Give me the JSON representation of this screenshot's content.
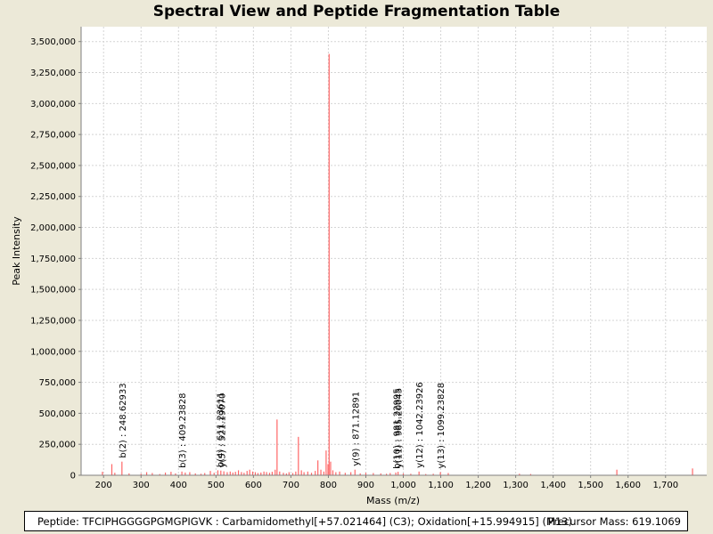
{
  "chart_data": {
    "type": "bar",
    "title": "Spectral View and Peptide Fragmentation Table",
    "xlabel": "Mass (m/z)",
    "ylabel": "Peak Intensity",
    "xlim": [
      140,
      1810
    ],
    "ylim": [
      0,
      3620000
    ],
    "x_ticks": [
      200,
      300,
      400,
      500,
      600,
      700,
      800,
      900,
      1000,
      1100,
      1200,
      1300,
      1400,
      1500,
      1600,
      1700
    ],
    "x_tick_labels": [
      "200",
      "300",
      "400",
      "500",
      "600",
      "700",
      "800",
      "900",
      "1,000",
      "1,100",
      "1,200",
      "1,300",
      "1,400",
      "1,500",
      "1,600",
      "1,700"
    ],
    "y_ticks": [
      0,
      250000,
      500000,
      750000,
      1000000,
      1250000,
      1500000,
      1750000,
      2000000,
      2250000,
      2500000,
      2750000,
      3000000,
      3250000,
      3500000
    ],
    "y_tick_labels": [
      "0",
      "250,000",
      "500,000",
      "750,000",
      "1,000,000",
      "1,250,000",
      "1,500,000",
      "1,750,000",
      "2,000,000",
      "2,250,000",
      "2,500,000",
      "2,750,000",
      "3,000,000",
      "3,250,000",
      "3,500,000"
    ],
    "grid": true,
    "peak_color": "#ff6666",
    "peaks": [
      [
        197,
        28000
      ],
      [
        222,
        90000
      ],
      [
        230,
        20000
      ],
      [
        249,
        110000
      ],
      [
        268,
        15000
      ],
      [
        300,
        12000
      ],
      [
        315,
        25000
      ],
      [
        330,
        18000
      ],
      [
        350,
        10000
      ],
      [
        365,
        22000
      ],
      [
        380,
        28000
      ],
      [
        392,
        15000
      ],
      [
        409,
        30000
      ],
      [
        418,
        22000
      ],
      [
        430,
        25000
      ],
      [
        445,
        15000
      ],
      [
        460,
        12000
      ],
      [
        470,
        18000
      ],
      [
        485,
        35000
      ],
      [
        495,
        20000
      ],
      [
        505,
        40000
      ],
      [
        513,
        38000
      ],
      [
        521,
        32000
      ],
      [
        530,
        25000
      ],
      [
        538,
        30000
      ],
      [
        545,
        22000
      ],
      [
        552,
        28000
      ],
      [
        560,
        40000
      ],
      [
        568,
        26000
      ],
      [
        575,
        20000
      ],
      [
        583,
        35000
      ],
      [
        590,
        45000
      ],
      [
        598,
        30000
      ],
      [
        605,
        25000
      ],
      [
        612,
        18000
      ],
      [
        620,
        22000
      ],
      [
        628,
        30000
      ],
      [
        635,
        26000
      ],
      [
        643,
        20000
      ],
      [
        650,
        28000
      ],
      [
        658,
        45000
      ],
      [
        663,
        450000
      ],
      [
        670,
        30000
      ],
      [
        680,
        20000
      ],
      [
        688,
        15000
      ],
      [
        695,
        25000
      ],
      [
        705,
        18000
      ],
      [
        713,
        30000
      ],
      [
        720,
        310000
      ],
      [
        728,
        40000
      ],
      [
        735,
        25000
      ],
      [
        745,
        30000
      ],
      [
        755,
        20000
      ],
      [
        765,
        35000
      ],
      [
        772,
        120000
      ],
      [
        780,
        45000
      ],
      [
        788,
        30000
      ],
      [
        794,
        200000
      ],
      [
        799,
        90000
      ],
      [
        802,
        3400000
      ],
      [
        806,
        110000
      ],
      [
        812,
        40000
      ],
      [
        820,
        25000
      ],
      [
        830,
        30000
      ],
      [
        845,
        20000
      ],
      [
        860,
        25000
      ],
      [
        871,
        45000
      ],
      [
        885,
        15000
      ],
      [
        900,
        20000
      ],
      [
        920,
        18000
      ],
      [
        940,
        15000
      ],
      [
        955,
        12000
      ],
      [
        965,
        18000
      ],
      [
        980,
        22000
      ],
      [
        986,
        28000
      ],
      [
        1000,
        15000
      ],
      [
        1020,
        12000
      ],
      [
        1042,
        30000
      ],
      [
        1060,
        10000
      ],
      [
        1080,
        12000
      ],
      [
        1099,
        25000
      ],
      [
        1120,
        18000
      ],
      [
        1310,
        12000
      ],
      [
        1340,
        10000
      ],
      [
        1570,
        45000
      ],
      [
        1772,
        55000
      ]
    ],
    "annotations": [
      {
        "label": "b(2) : 248.62933",
        "x": 249,
        "y": 110000
      },
      {
        "label": "b(3) : 409.23828",
        "x": 409,
        "y": 30000
      },
      {
        "label": "b(4) : 511.23611",
        "x": 510,
        "y": 35000
      },
      {
        "label": "y(5) : 521.19070",
        "x": 515,
        "y": 32000
      },
      {
        "label": "y(9) : 871.12891",
        "x": 871,
        "y": 45000
      },
      {
        "label": "b(10) : 981.22995",
        "x": 981,
        "y": 22000
      },
      {
        "label": "y(11) : 985.20045",
        "x": 986,
        "y": 28000
      },
      {
        "label": "y(12) : 1042.23926",
        "x": 1042,
        "y": 30000
      },
      {
        "label": "y(13) : 1099.23828",
        "x": 1099,
        "y": 25000
      }
    ]
  },
  "footer": {
    "peptide": "Peptide: TFCIPHGGGGPGMGPIGVK : Carbamidomethyl[+57.021464] (C3); Oxidation[+15.994915] (M13)",
    "precursor": "Precursor Mass: 619.1069"
  }
}
